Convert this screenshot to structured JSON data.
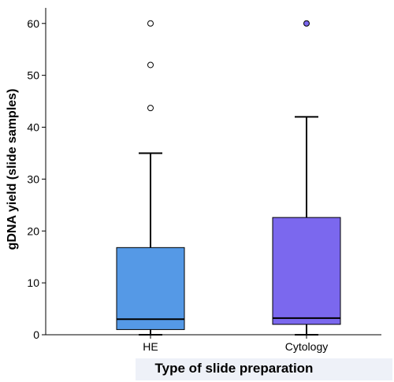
{
  "chart_data": {
    "type": "box",
    "ylabel": "gDNA yield (slide samples)",
    "xlabel": "Type of slide preparation",
    "ylim": [
      0,
      63
    ],
    "yticks": [
      0,
      10,
      20,
      30,
      40,
      50,
      60
    ],
    "grid": false,
    "categories": [
      "HE",
      "Cytology"
    ],
    "boxes": [
      {
        "category": "HE",
        "whisker_low": 0,
        "q1": 1.0,
        "median": 3.0,
        "q3": 16.8,
        "whisker_high": 35.0,
        "outliers": [
          43.7,
          52.0,
          60.0
        ],
        "color": "#5599e6",
        "outlier_fill": "#ffffff"
      },
      {
        "category": "Cytology",
        "whisker_low": 0,
        "q1": 2.0,
        "median": 3.2,
        "q3": 22.6,
        "whisker_high": 42.0,
        "outliers": [
          60.0
        ],
        "color": "#7b68ee",
        "outlier_fill": "#7b68ee"
      }
    ]
  }
}
